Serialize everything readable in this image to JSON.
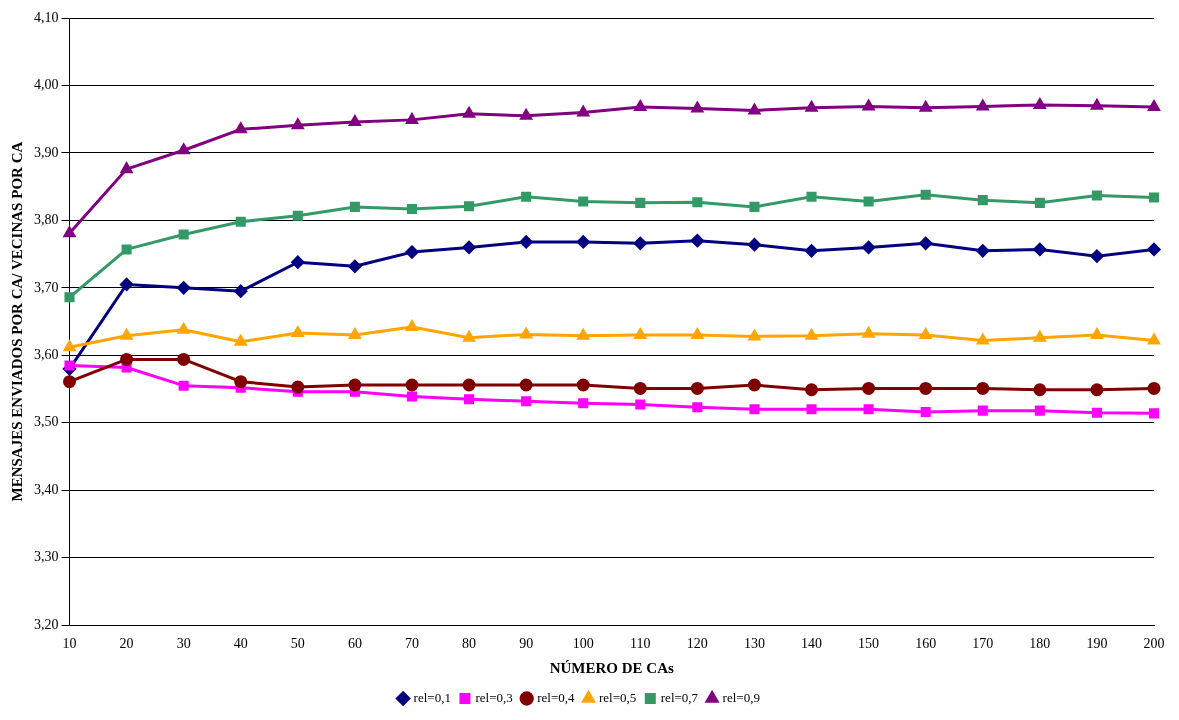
{
  "chart_data": {
    "type": "line",
    "xlabel": "NÚMERO DE CAs",
    "ylabel": "MENSAJES ENVIADOS POR CA/ VECINAS POR CA",
    "categories": [
      "10",
      "20",
      "30",
      "40",
      "50",
      "60",
      "70",
      "80",
      "90",
      "100",
      "110",
      "120",
      "130",
      "140",
      "150",
      "160",
      "170",
      "180",
      "190",
      "200"
    ],
    "ylim": [
      3.2,
      4.1
    ],
    "yticks": [
      {
        "value": 3.2,
        "label": "3,20"
      },
      {
        "value": 3.3,
        "label": "3,30"
      },
      {
        "value": 3.4,
        "label": "3,40"
      },
      {
        "value": 3.5,
        "label": "3,50"
      },
      {
        "value": 3.6,
        "label": "3,60"
      },
      {
        "value": 3.7,
        "label": "3,70"
      },
      {
        "value": 3.8,
        "label": "3,80"
      },
      {
        "value": 3.9,
        "label": "3,90"
      },
      {
        "value": 4.0,
        "label": "4,00"
      },
      {
        "value": 4.1,
        "label": "4,10"
      }
    ],
    "grid": "y",
    "legend": "bottom",
    "line_style": "solid",
    "series": [
      {
        "name": "rel=0,1",
        "color": "#000080",
        "marker": "diamond",
        "values": [
          3.58,
          3.705,
          3.7,
          3.695,
          3.738,
          3.732,
          3.753,
          3.76,
          3.768,
          3.768,
          3.766,
          3.77,
          3.764,
          3.755,
          3.76,
          3.766,
          3.755,
          3.757,
          3.747,
          3.757
        ]
      },
      {
        "name": "rel=0,3",
        "color": "#ff00ff",
        "marker": "square",
        "values": [
          3.585,
          3.582,
          3.555,
          3.552,
          3.546,
          3.546,
          3.539,
          3.535,
          3.532,
          3.529,
          3.527,
          3.523,
          3.52,
          3.52,
          3.52,
          3.516,
          3.518,
          3.518,
          3.515,
          3.514
        ]
      },
      {
        "name": "rel=0,4",
        "color": "#800000",
        "marker": "circle",
        "values": [
          3.561,
          3.594,
          3.594,
          3.561,
          3.553,
          3.556,
          3.556,
          3.556,
          3.556,
          3.556,
          3.551,
          3.551,
          3.556,
          3.549,
          3.551,
          3.551,
          3.551,
          3.549,
          3.549,
          3.551
        ]
      },
      {
        "name": "rel=0,5",
        "color": "#ffa500",
        "marker": "triangle",
        "values": [
          3.612,
          3.629,
          3.638,
          3.62,
          3.633,
          3.63,
          3.642,
          3.626,
          3.631,
          3.629,
          3.63,
          3.63,
          3.628,
          3.629,
          3.632,
          3.63,
          3.622,
          3.626,
          3.63,
          3.622
        ]
      },
      {
        "name": "rel=0,7",
        "color": "#339966",
        "marker": "square",
        "values": [
          3.686,
          3.757,
          3.779,
          3.798,
          3.807,
          3.82,
          3.817,
          3.821,
          3.835,
          3.828,
          3.826,
          3.827,
          3.82,
          3.835,
          3.828,
          3.838,
          3.83,
          3.826,
          3.837,
          3.834
        ]
      },
      {
        "name": "rel=0,9",
        "color": "#800080",
        "marker": "triangle",
        "values": [
          3.781,
          3.876,
          3.904,
          3.935,
          3.941,
          3.946,
          3.949,
          3.958,
          3.955,
          3.96,
          3.968,
          3.966,
          3.963,
          3.967,
          3.969,
          3.967,
          3.969,
          3.971,
          3.97,
          3.968
        ]
      }
    ]
  }
}
